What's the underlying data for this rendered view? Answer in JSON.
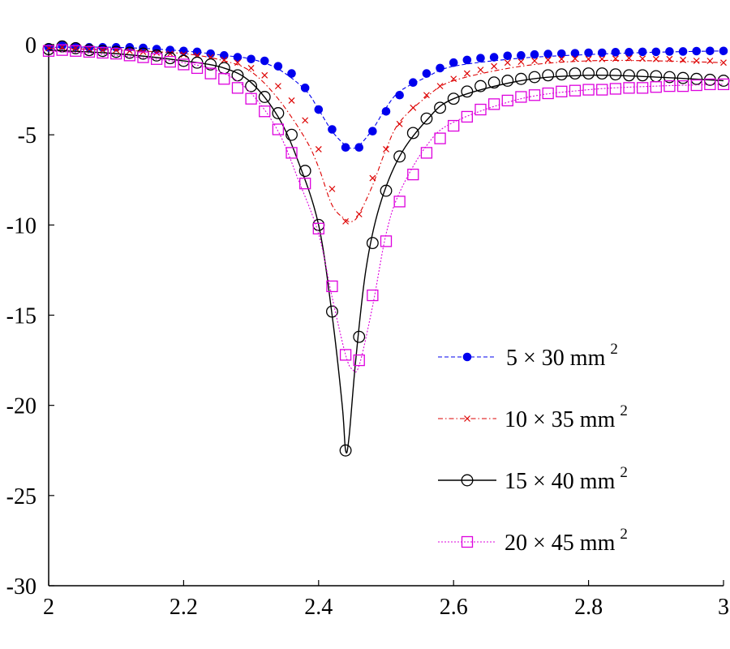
{
  "chart_data": {
    "type": "line",
    "title": "",
    "xlabel": "",
    "ylabel": "",
    "xlim": [
      2,
      3
    ],
    "ylim": [
      -30,
      0
    ],
    "grid": false,
    "legend_position": "bottom-right",
    "x_ticks": [
      {
        "value": 2,
        "label": "2"
      },
      {
        "value": 2.2,
        "label": "2.2"
      },
      {
        "value": 2.4,
        "label": "2.4"
      },
      {
        "value": 2.6,
        "label": "2.6"
      },
      {
        "value": 2.8,
        "label": "2.8"
      },
      {
        "value": 3,
        "label": "3"
      }
    ],
    "y_ticks": [
      {
        "value": 0,
        "label": "0"
      },
      {
        "value": -5,
        "label": "-5"
      },
      {
        "value": -10,
        "label": "-10"
      },
      {
        "value": -15,
        "label": "-15"
      },
      {
        "value": -20,
        "label": "-20"
      },
      {
        "value": -25,
        "label": "-25"
      },
      {
        "value": -30,
        "label": "-30"
      }
    ],
    "x": [
      2.0,
      2.02,
      2.04,
      2.06,
      2.08,
      2.1,
      2.12,
      2.14,
      2.16,
      2.18,
      2.2,
      2.22,
      2.24,
      2.26,
      2.28,
      2.3,
      2.32,
      2.34,
      2.36,
      2.38,
      2.4,
      2.42,
      2.44,
      2.46,
      2.48,
      2.5,
      2.52,
      2.54,
      2.56,
      2.58,
      2.6,
      2.62,
      2.64,
      2.66,
      2.68,
      2.7,
      2.72,
      2.74,
      2.76,
      2.78,
      2.8,
      2.82,
      2.84,
      2.86,
      2.88,
      2.9,
      2.92,
      2.94,
      2.96,
      2.98,
      3.0
    ],
    "series": [
      {
        "name": "5 × 30 mm",
        "superscript": "2",
        "color": "#0000ee",
        "marker": "filled-circle",
        "line": "dashed",
        "curve_x": [
          2.0,
          2.1,
          2.2,
          2.26,
          2.3,
          2.34,
          2.38,
          2.4,
          2.42,
          2.44,
          2.45,
          2.46,
          2.48,
          2.5,
          2.52,
          2.56,
          2.6,
          2.7,
          2.8,
          2.9,
          3.0
        ],
        "curve_y": [
          -0.15,
          -0.15,
          -0.35,
          -0.6,
          -0.8,
          -1.35,
          -2.5,
          -3.6,
          -4.8,
          -5.6,
          -5.75,
          -5.6,
          -4.7,
          -3.5,
          -2.6,
          -1.8,
          -1.2,
          -0.75,
          -0.55,
          -0.42,
          -0.35
        ],
        "values": [
          -0.15,
          -0.05,
          -0.1,
          -0.15,
          -0.15,
          -0.15,
          -0.15,
          -0.18,
          -0.25,
          -0.3,
          -0.35,
          -0.4,
          -0.5,
          -0.6,
          -0.7,
          -0.8,
          -0.9,
          -1.2,
          -1.6,
          -2.4,
          -3.6,
          -4.7,
          -5.7,
          -5.7,
          -4.8,
          -3.7,
          -2.8,
          -2.1,
          -1.6,
          -1.3,
          -1.0,
          -0.85,
          -0.75,
          -0.7,
          -0.62,
          -0.6,
          -0.55,
          -0.52,
          -0.5,
          -0.48,
          -0.45,
          -0.45,
          -0.42,
          -0.42,
          -0.4,
          -0.4,
          -0.38,
          -0.38,
          -0.36,
          -0.35,
          -0.35
        ]
      },
      {
        "name": "10 × 35 mm",
        "superscript": "2",
        "color": "#dd0000",
        "marker": "x",
        "line": "dash-dot",
        "curve_x": [
          2.0,
          2.1,
          2.2,
          2.26,
          2.3,
          2.34,
          2.38,
          2.4,
          2.42,
          2.44,
          2.45,
          2.46,
          2.48,
          2.5,
          2.52,
          2.56,
          2.6,
          2.7,
          2.8,
          2.9,
          3.0
        ],
        "curve_y": [
          -0.2,
          -0.3,
          -0.5,
          -0.9,
          -1.5,
          -3.0,
          -5.2,
          -6.8,
          -8.9,
          -9.7,
          -9.8,
          -9.4,
          -7.8,
          -5.8,
          -4.3,
          -2.9,
          -2.0,
          -1.2,
          -0.9,
          -0.9,
          -1.0
        ],
        "values": [
          -0.2,
          -0.15,
          -0.2,
          -0.25,
          -0.3,
          -0.3,
          -0.35,
          -0.4,
          -0.45,
          -0.5,
          -0.55,
          -0.6,
          -0.7,
          -0.85,
          -1.0,
          -1.3,
          -1.7,
          -2.3,
          -3.1,
          -4.2,
          -5.8,
          -8.0,
          -9.8,
          -9.4,
          -7.4,
          -5.8,
          -4.4,
          -3.5,
          -2.8,
          -2.3,
          -1.9,
          -1.6,
          -1.4,
          -1.2,
          -1.0,
          -0.95,
          -0.9,
          -0.85,
          -0.8,
          -0.78,
          -0.8,
          -0.8,
          -0.78,
          -0.75,
          -0.78,
          -0.8,
          -0.8,
          -0.85,
          -0.9,
          -0.9,
          -1.0
        ]
      },
      {
        "name": "15 × 40 mm",
        "superscript": "2",
        "color": "#000000",
        "marker": "open-circle",
        "line": "solid",
        "curve_x": [
          2.0,
          2.1,
          2.2,
          2.26,
          2.3,
          2.34,
          2.37,
          2.4,
          2.42,
          2.435,
          2.44,
          2.445,
          2.455,
          2.47,
          2.49,
          2.52,
          2.56,
          2.6,
          2.7,
          2.8,
          2.9,
          3.0
        ],
        "curve_y": [
          -0.3,
          -0.5,
          -0.9,
          -1.3,
          -2.1,
          -4.0,
          -6.5,
          -10.0,
          -15.0,
          -20.0,
          -22.5,
          -21.8,
          -17.5,
          -12.5,
          -9.0,
          -6.2,
          -4.2,
          -3.0,
          -2.0,
          -1.7,
          -1.8,
          -2.0
        ],
        "values": [
          -0.25,
          -0.1,
          -0.2,
          -0.3,
          -0.35,
          -0.4,
          -0.45,
          -0.5,
          -0.6,
          -0.75,
          -0.9,
          -1.0,
          -1.1,
          -1.3,
          -1.7,
          -2.3,
          -2.9,
          -3.8,
          -5.0,
          -7.0,
          -10.0,
          -14.8,
          -22.5,
          -16.2,
          -11.0,
          -8.1,
          -6.2,
          -4.9,
          -4.1,
          -3.5,
          -3.0,
          -2.6,
          -2.3,
          -2.1,
          -2.0,
          -1.9,
          -1.8,
          -1.7,
          -1.65,
          -1.6,
          -1.6,
          -1.6,
          -1.65,
          -1.7,
          -1.7,
          -1.75,
          -1.8,
          -1.85,
          -1.9,
          -1.95,
          -2.0
        ]
      },
      {
        "name": "20 × 45 mm",
        "superscript": "2",
        "color": "#dd00dd",
        "marker": "open-square",
        "line": "dotted",
        "curve_x": [
          2.0,
          2.1,
          2.2,
          2.26,
          2.3,
          2.34,
          2.37,
          2.4,
          2.42,
          2.44,
          2.45,
          2.46,
          2.48,
          2.5,
          2.52,
          2.56,
          2.6,
          2.7,
          2.8,
          2.9,
          3.0
        ],
        "curve_y": [
          -0.35,
          -0.6,
          -1.0,
          -1.6,
          -2.7,
          -4.8,
          -7.5,
          -10.5,
          -14.0,
          -17.2,
          -18.0,
          -17.8,
          -14.5,
          -10.5,
          -8.2,
          -5.6,
          -4.3,
          -3.0,
          -2.5,
          -2.3,
          -2.2
        ],
        "values": [
          -0.35,
          -0.3,
          -0.35,
          -0.4,
          -0.45,
          -0.5,
          -0.6,
          -0.7,
          -0.8,
          -0.95,
          -1.1,
          -1.3,
          -1.6,
          -1.9,
          -2.4,
          -3.0,
          -3.7,
          -4.7,
          -6.0,
          -7.7,
          -10.2,
          -13.4,
          -17.2,
          -17.5,
          -13.9,
          -10.9,
          -8.7,
          -7.2,
          -6.0,
          -5.2,
          -4.5,
          -4.0,
          -3.6,
          -3.3,
          -3.1,
          -2.9,
          -2.8,
          -2.7,
          -2.6,
          -2.55,
          -2.5,
          -2.5,
          -2.45,
          -2.4,
          -2.4,
          -2.35,
          -2.3,
          -2.3,
          -2.25,
          -2.2,
          -2.2
        ]
      }
    ]
  }
}
